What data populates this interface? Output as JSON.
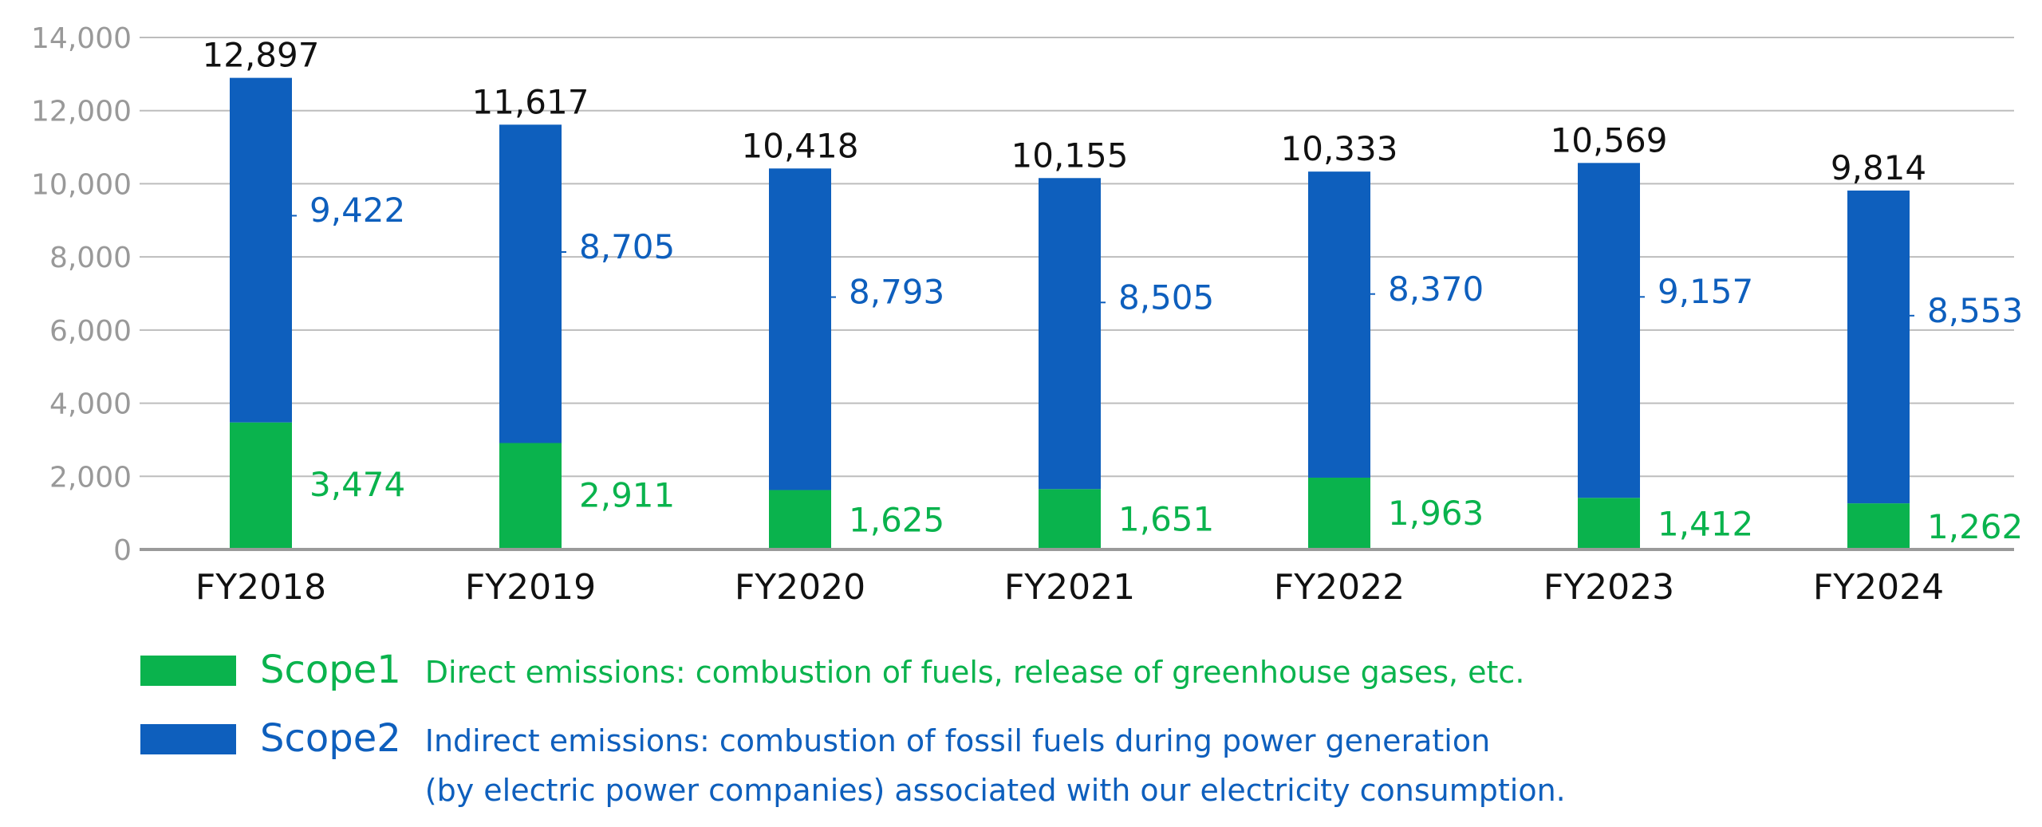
{
  "colors": {
    "scope1": "#0ab34d",
    "scope2": "#0e5fbd",
    "grid": "#bdbdbd",
    "axis": "#9a9a9a",
    "tick_text": "#999999",
    "total_text": "#111111"
  },
  "chart_data": {
    "type": "bar",
    "stacked": true,
    "categories": [
      "FY2018",
      "FY2019",
      "FY2020",
      "FY2021",
      "FY2022",
      "FY2023",
      "FY2024"
    ],
    "series": [
      {
        "name": "Scope1",
        "values": [
          3474,
          2911,
          1625,
          1651,
          1963,
          1412,
          1262
        ]
      },
      {
        "name": "Scope2",
        "values": [
          9422,
          8705,
          8793,
          8505,
          8370,
          9157,
          8553
        ]
      }
    ],
    "totals": [
      12897,
      11617,
      10418,
      10155,
      10333,
      10569,
      9814
    ],
    "value_labels": {
      "scope1": [
        "3,474",
        "2,911",
        "1,625",
        "1,651",
        "1,963",
        "1,412",
        "1,262"
      ],
      "scope2": [
        "9,422",
        "8,705",
        "8,793",
        "8,505",
        "8,370",
        "9,157",
        "8,553"
      ],
      "totals": [
        "12,897",
        "11,617",
        "10,418",
        "10,155",
        "10,333",
        "10,569",
        "9,814"
      ]
    },
    "ylim": [
      0,
      14000
    ],
    "yticks": [
      "0",
      "2,000",
      "4,000",
      "6,000",
      "8,000",
      "10,000",
      "12,000",
      "14,000"
    ],
    "grid": true,
    "legend_position": "bottom"
  },
  "legend": {
    "scope1": {
      "name": "Scope1",
      "description": "Direct emissions: combustion of fuels, release of greenhouse gases, etc."
    },
    "scope2": {
      "name": "Scope2",
      "description_line1": "Indirect emissions: combustion of fossil fuels during power generation",
      "description_line2": "(by electric power companies) associated with our electricity consumption."
    }
  }
}
